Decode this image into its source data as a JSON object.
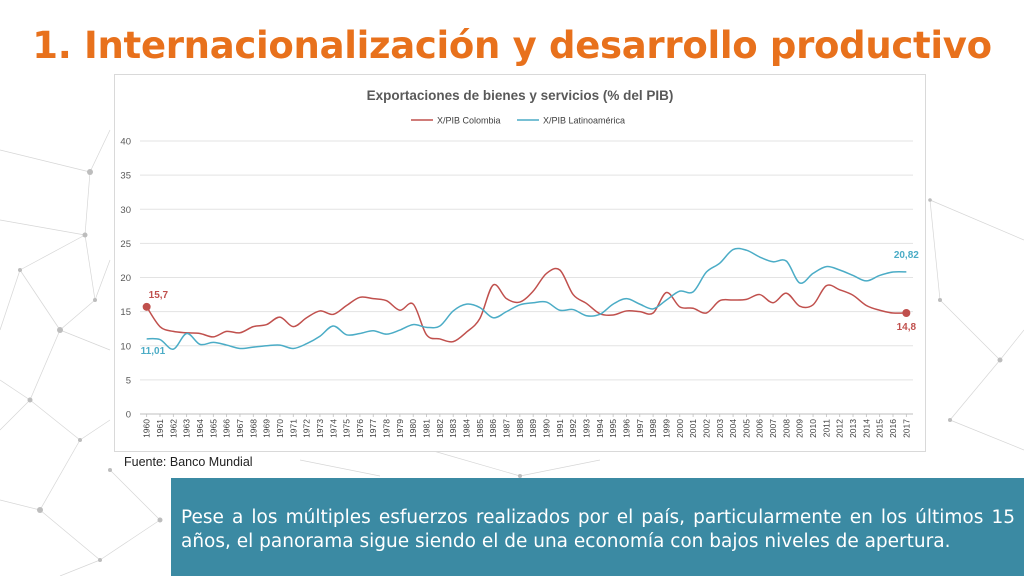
{
  "slide": {
    "title": "1. Internacionalización y desarrollo productivo",
    "source": "Fuente: Banco Mundial",
    "note": "Pese a los múltiples esfuerzos realizados por el país, particularmente en los últimos 15 años, el panorama sigue siendo el de una economía con bajos niveles de apertura."
  },
  "colors": {
    "title": "#E8711C",
    "note_bg": "#3b8aa3",
    "colombia": "#C0504D",
    "latam": "#4BACC6"
  },
  "chart_data": {
    "type": "line",
    "title": "Exportaciones de bienes y servicios (% del PIB)",
    "xlabel": "",
    "ylabel": "",
    "ylim": [
      0,
      40
    ],
    "yticks": [
      0,
      5,
      10,
      15,
      20,
      25,
      30,
      35,
      40
    ],
    "legend": "top",
    "grid": true,
    "categories": [
      "1960",
      "1961",
      "1962",
      "1963",
      "1964",
      "1965",
      "1966",
      "1967",
      "1968",
      "1969",
      "1970",
      "1971",
      "1972",
      "1973",
      "1974",
      "1975",
      "1976",
      "1977",
      "1978",
      "1979",
      "1980",
      "1981",
      "1982",
      "1983",
      "1984",
      "1985",
      "1986",
      "1987",
      "1988",
      "1989",
      "1990",
      "1991",
      "1992",
      "1993",
      "1994",
      "1995",
      "1996",
      "1997",
      "1998",
      "1999",
      "2000",
      "2001",
      "2002",
      "2003",
      "2004",
      "2005",
      "2006",
      "2007",
      "2008",
      "2009",
      "2010",
      "2011",
      "2012",
      "2013",
      "2014",
      "2015",
      "2016",
      "2017"
    ],
    "series": [
      {
        "name": "X/PIB Colombia",
        "values": [
          15.7,
          12.8,
          12.1,
          11.9,
          11.8,
          11.3,
          12.1,
          11.9,
          12.8,
          13.1,
          14.2,
          12.8,
          14.1,
          15.1,
          14.6,
          15.9,
          17.1,
          16.9,
          16.6,
          15.2,
          16.1,
          11.6,
          11.0,
          10.6,
          12.0,
          14.0,
          18.9,
          16.9,
          16.4,
          18.0,
          20.6,
          21.1,
          17.5,
          16.2,
          14.7,
          14.5,
          15.1,
          15.0,
          14.8,
          17.8,
          15.7,
          15.5,
          14.8,
          16.6,
          16.7,
          16.8,
          17.5,
          16.3,
          17.7,
          15.8,
          16.0,
          18.8,
          18.2,
          17.4,
          15.9,
          15.2,
          14.8,
          14.8
        ],
        "labels": [
          {
            "index": 0,
            "text": "15,7"
          },
          {
            "index": 57,
            "text": "14,8"
          }
        ]
      },
      {
        "name": "X/PIB Latinoamérica",
        "values": [
          11.01,
          10.9,
          9.5,
          11.8,
          10.2,
          10.5,
          10.1,
          9.6,
          9.8,
          10.0,
          10.1,
          9.6,
          10.3,
          11.4,
          12.9,
          11.6,
          11.8,
          12.2,
          11.7,
          12.3,
          13.1,
          12.7,
          12.9,
          15.1,
          16.1,
          15.6,
          14.1,
          15.0,
          16.0,
          16.3,
          16.4,
          15.2,
          15.3,
          14.4,
          14.6,
          16.1,
          16.9,
          16.1,
          15.4,
          16.7,
          18.0,
          17.9,
          20.8,
          22.1,
          24.1,
          24.0,
          23.0,
          22.3,
          22.4,
          19.2,
          20.6,
          21.6,
          21.1,
          20.3,
          19.5,
          20.3,
          20.8,
          20.82
        ],
        "labels": [
          {
            "index": 0,
            "text": "11,01"
          },
          {
            "index": 57,
            "text": "20,82"
          }
        ]
      }
    ]
  }
}
